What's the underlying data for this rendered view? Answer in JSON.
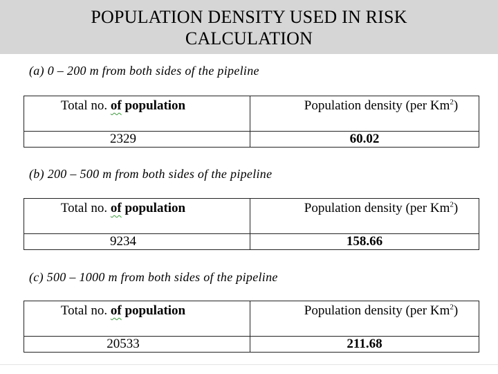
{
  "title": "POPULATION DENSITY USED IN RISK CALCULATION",
  "header": {
    "col1_pre": "Total no. ",
    "col1_of": "of",
    "col1_post": " population",
    "col2_pre": "Population density (per Km",
    "col2_sup": "2",
    "col2_post": ")"
  },
  "sections": [
    {
      "label": "(a) 0 – 200 m  from both sides of the pipeline",
      "population": "2329",
      "density": "60.02"
    },
    {
      "label": "(b) 200 – 500 m from both sides of the pipeline",
      "population": "9234",
      "density": "158.66"
    },
    {
      "label": "(c) 500 – 1000 m from both sides of the pipeline",
      "population": "20533",
      "density": "211.68"
    }
  ]
}
